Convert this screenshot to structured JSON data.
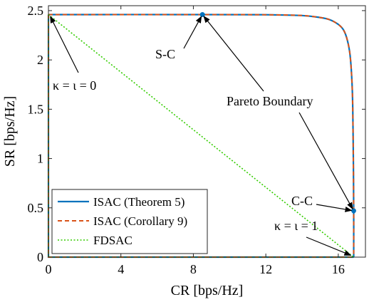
{
  "chart_data": {
    "type": "line",
    "xlabel": "CR [bps/Hz]",
    "ylabel": "SR [bps/Hz]",
    "xlim": [
      0,
      17.5
    ],
    "ylim": [
      0,
      2.55
    ],
    "xticks": [
      0,
      4,
      8,
      12,
      16
    ],
    "yticks": [
      0,
      0.5,
      1,
      1.5,
      2,
      2.5
    ],
    "xtick_labels": [
      "0",
      "4",
      "8",
      "12",
      "16"
    ],
    "ytick_labels": [
      "0",
      "0.5",
      "1",
      "1.5",
      "2",
      "2.5"
    ],
    "grid": false,
    "legend_position": "bottom-left",
    "series": [
      {
        "name": "ISAC (Theorem 5)",
        "color": "#0072BD",
        "style": "solid",
        "x": [
          0,
          8.5,
          12,
          14,
          15,
          15.5,
          16,
          16.3,
          16.5,
          16.65,
          16.75,
          16.8,
          16.83,
          16.85,
          16.85
        ],
        "y": [
          2.46,
          2.46,
          2.458,
          2.45,
          2.43,
          2.41,
          2.36,
          2.3,
          2.2,
          2.05,
          1.8,
          1.5,
          1.0,
          0.47,
          0
        ]
      },
      {
        "name": "ISAC (Corollary 9)",
        "color": "#D95319",
        "style": "dashed",
        "x": [
          0,
          8.5,
          12,
          14,
          15,
          15.5,
          16,
          16.3,
          16.5,
          16.65,
          16.75,
          16.8,
          16.83,
          16.85,
          16.85
        ],
        "y": [
          2.46,
          2.46,
          2.458,
          2.45,
          2.43,
          2.41,
          2.36,
          2.3,
          2.2,
          2.05,
          1.8,
          1.5,
          1.0,
          0.47,
          0
        ]
      },
      {
        "name": "FDSAC",
        "color": "#33CC00",
        "style": "dotted",
        "x": [
          0,
          16.85
        ],
        "y": [
          2.46,
          0
        ]
      }
    ],
    "boundary_extra": {
      "x": [
        0,
        0,
        16.85
      ],
      "y": [
        2.46,
        0,
        0
      ]
    },
    "markers": [
      {
        "x": 8.5,
        "y": 2.46
      },
      {
        "x": 16.85,
        "y": 0.47
      }
    ],
    "annotations": [
      {
        "id": "sc",
        "text": "S-C",
        "target": [
          8.5,
          2.46
        ]
      },
      {
        "id": "pareto1",
        "text": "Pareto Boundary",
        "target": [
          8.5,
          2.46
        ]
      },
      {
        "id": "pareto2",
        "text": "Pareto Boundary",
        "target": [
          16.85,
          0.47
        ]
      },
      {
        "id": "cc",
        "text": "C-C",
        "target": [
          16.85,
          0.47
        ]
      },
      {
        "id": "k0",
        "text": "κ = ι = 0",
        "target": [
          0.05,
          2.46
        ]
      },
      {
        "id": "k1",
        "text": "κ = ι = 1",
        "target": [
          16.8,
          0.01
        ]
      }
    ]
  }
}
